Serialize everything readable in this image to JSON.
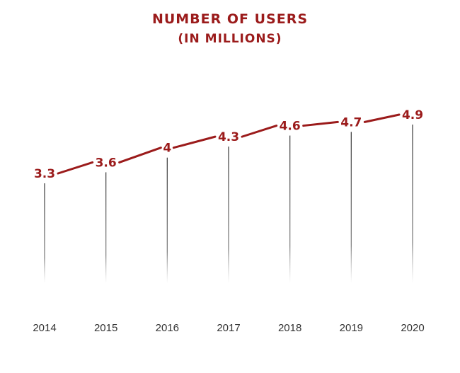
{
  "chart_data": {
    "type": "line",
    "title": "NUMBER OF USERS",
    "subtitle": "(IN MILLIONS)",
    "categories": [
      "2014",
      "2015",
      "2016",
      "2017",
      "2018",
      "2019",
      "2020"
    ],
    "values": [
      3.3,
      3.6,
      4,
      4.3,
      4.6,
      4.7,
      4.9
    ],
    "value_labels": [
      "3.3",
      "3.6",
      "4",
      "4.3",
      "4.6",
      "4.7",
      "4.9"
    ],
    "line_color": "#9b1b1b",
    "drop_line_color": "#444444",
    "grid": false,
    "legend": "none"
  }
}
